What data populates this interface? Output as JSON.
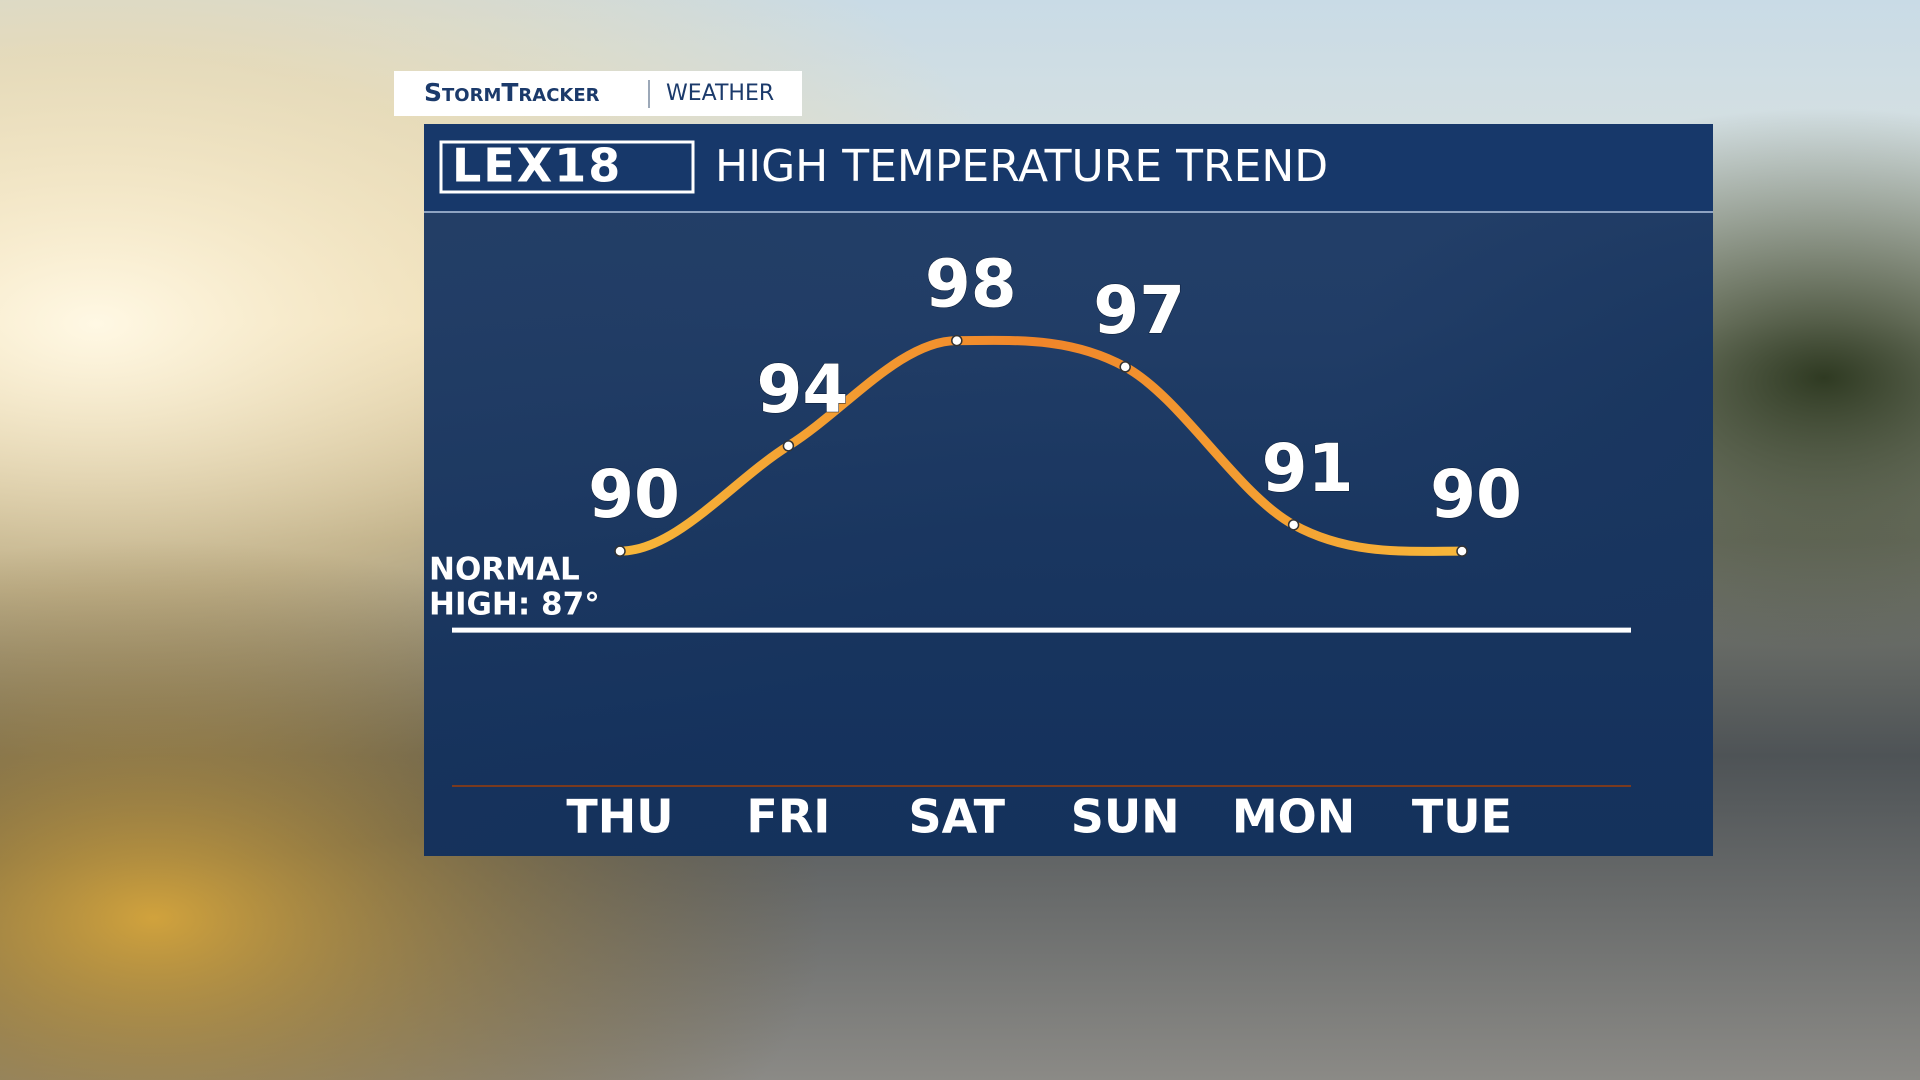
{
  "header": {
    "brand": "StormTracker",
    "section": "Weather",
    "logo": "LEX18"
  },
  "chart_data": {
    "type": "line",
    "title": "HIGH TEMPERATURE TREND",
    "categories": [
      "THU",
      "FRI",
      "SAT",
      "SUN",
      "MON",
      "TUE"
    ],
    "series": [
      {
        "name": "High temperature",
        "color": "#f39a2a",
        "values": [
          90,
          94,
          98,
          97,
          91,
          90
        ]
      }
    ],
    "ylim": [
      81,
      103
    ],
    "normal": {
      "label": [
        "NORMAL",
        "HIGH: 87°"
      ],
      "value": 87
    }
  }
}
